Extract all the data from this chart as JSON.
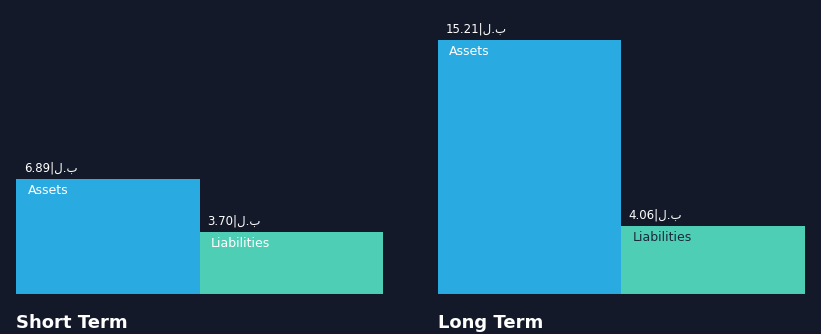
{
  "background_color": "#131929",
  "groups": [
    "Short Term",
    "Long Term"
  ],
  "categories": [
    "Assets",
    "Liabilities"
  ],
  "values": {
    "Short Term": {
      "Assets": 6.89,
      "Liabilities": 3.7
    },
    "Long Term": {
      "Assets": 15.21,
      "Liabilities": 4.06
    }
  },
  "value_labels": {
    "Short Term": {
      "Assets": "6.89|ل.ب",
      "Liabilities": "3.70|ل.ب"
    },
    "Long Term": {
      "Assets": "15.21|ل.ب",
      "Liabilities": "4.06|ل.ب"
    }
  },
  "colors": {
    "Assets": "#29ABE2",
    "Liabilities": "#4ECFB5"
  },
  "ylim_short": 16,
  "ylim_long": 16,
  "group_label_fontsize": 13,
  "value_label_fontsize": 8.5,
  "bar_label_fontsize": 9,
  "text_color": "#ffffff",
  "liab_text_color": "#1a2a3a",
  "axis_line_color": "#555555"
}
